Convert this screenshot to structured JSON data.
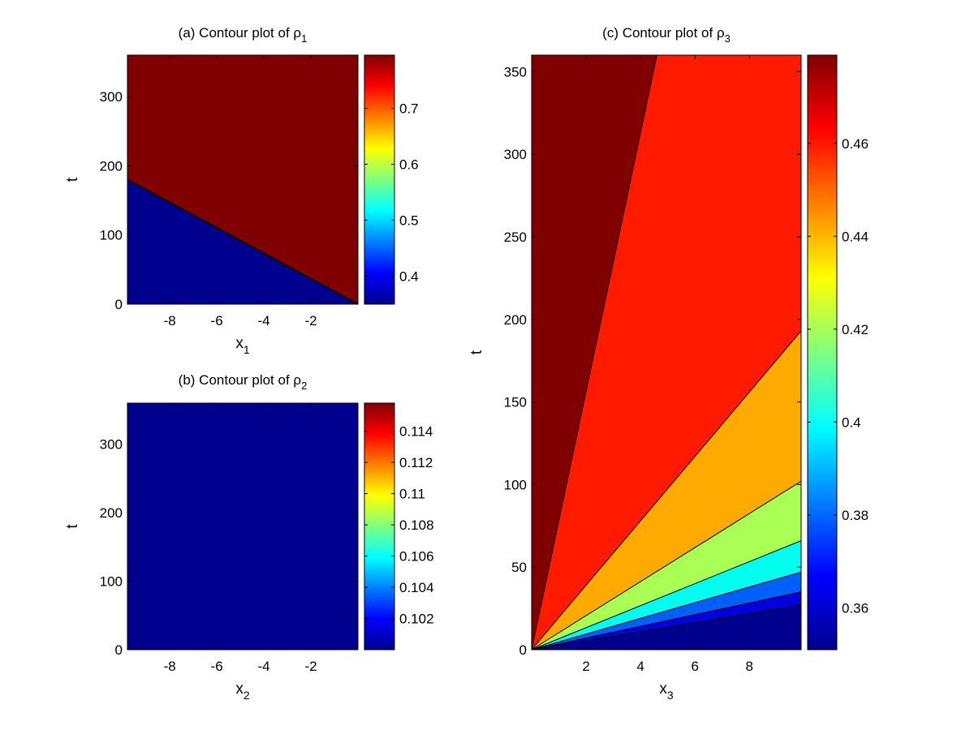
{
  "chart_data": [
    {
      "type": "contour",
      "title_prefix": "(a) Contour plot of ",
      "title_symbol": "ρ",
      "title_sub": "1",
      "xlabel": "x",
      "xlabel_sub": "1",
      "ylabel": "t",
      "xlim": [
        -9.8,
        0
      ],
      "ylim": [
        0,
        360
      ],
      "xticks": [
        -8,
        -6,
        -4,
        -2
      ],
      "yticks": [
        0,
        100,
        200,
        300
      ],
      "regions": [
        {
          "polygon": [
            [
              -9.8,
              0
            ],
            [
              0,
              0
            ],
            [
              -9.8,
              180
            ]
          ],
          "value": 0.35,
          "color": "#00008f"
        },
        {
          "polygon": [
            [
              -9.8,
              180
            ],
            [
              0,
              0
            ],
            [
              0,
              360
            ],
            [
              -9.8,
              360
            ]
          ],
          "value": 0.79,
          "color": "#800000"
        }
      ],
      "contour_lines": [
        [
          [
            -9.8,
            180
          ],
          [
            0,
            0
          ]
        ]
      ],
      "colorbar": {
        "min": 0.35,
        "max": 0.795,
        "ticks": [
          0.4,
          0.5,
          0.6,
          0.7
        ],
        "tick_labels": [
          "0.4",
          "0.5",
          "0.6",
          "0.7"
        ]
      }
    },
    {
      "type": "contour",
      "title_prefix": "(b) Contour plot of ",
      "title_symbol": "ρ",
      "title_sub": "2",
      "xlabel": "x",
      "xlabel_sub": "2",
      "ylabel": "t",
      "xlim": [
        -9.8,
        0
      ],
      "ylim": [
        0,
        360
      ],
      "xticks": [
        -8,
        -6,
        -4,
        -2
      ],
      "yticks": [
        0,
        100,
        200,
        300
      ],
      "regions": [
        {
          "polygon": [
            [
              -9.8,
              0
            ],
            [
              0,
              0
            ],
            [
              0,
              360
            ],
            [
              -9.8,
              360
            ]
          ],
          "value": 0.1,
          "color": "#00008f"
        }
      ],
      "contour_lines": [],
      "colorbar": {
        "min": 0.1,
        "max": 0.1158,
        "ticks": [
          0.102,
          0.104,
          0.106,
          0.108,
          0.11,
          0.112,
          0.114
        ],
        "tick_labels": [
          "0.102",
          "0.104",
          "0.106",
          "0.108",
          "0.11",
          "0.112",
          "0.114"
        ]
      }
    },
    {
      "type": "contour",
      "title_prefix": "(c) Contour plot of ",
      "title_symbol": "ρ",
      "title_sub": "3",
      "xlabel": "x",
      "xlabel_sub": "3",
      "ylabel": "t",
      "xlim": [
        0,
        9.9
      ],
      "ylim": [
        0,
        360
      ],
      "xticks": [
        2,
        4,
        6,
        8
      ],
      "yticks": [
        0,
        50,
        100,
        150,
        200,
        250,
        300,
        350
      ],
      "regions": [
        {
          "polygon": [
            [
              0,
              0
            ],
            [
              4.6,
              360
            ],
            [
              0,
              360
            ]
          ],
          "value": 0.478,
          "color": "#800000"
        },
        {
          "polygon": [
            [
              0,
              0
            ],
            [
              9.9,
              193
            ],
            [
              9.9,
              360
            ],
            [
              4.6,
              360
            ]
          ],
          "value": 0.465,
          "color": "#ff1a00"
        },
        {
          "polygon": [
            [
              0,
              0
            ],
            [
              9.9,
              102
            ],
            [
              9.9,
              193
            ]
          ],
          "value": 0.445,
          "color": "#ffaa00"
        },
        {
          "polygon": [
            [
              0,
              0
            ],
            [
              9.9,
              66
            ],
            [
              9.9,
              102
            ]
          ],
          "value": 0.425,
          "color": "#aaff55"
        },
        {
          "polygon": [
            [
              0,
              0
            ],
            [
              9.9,
              47
            ],
            [
              9.9,
              66
            ]
          ],
          "value": 0.405,
          "color": "#00ffee"
        },
        {
          "polygon": [
            [
              0,
              0
            ],
            [
              9.9,
              35
            ],
            [
              9.9,
              47
            ]
          ],
          "value": 0.378,
          "color": "#0060ff"
        },
        {
          "polygon": [
            [
              0,
              0
            ],
            [
              9.9,
              27
            ],
            [
              9.9,
              35
            ]
          ],
          "value": 0.36,
          "color": "#0000dd"
        },
        {
          "polygon": [
            [
              0,
              0
            ],
            [
              9.9,
              0
            ],
            [
              9.9,
              27
            ]
          ],
          "value": 0.352,
          "color": "#00008f"
        }
      ],
      "contour_lines": [
        [
          [
            0,
            0
          ],
          [
            4.6,
            360
          ]
        ],
        [
          [
            0,
            0
          ],
          [
            9.9,
            193
          ]
        ],
        [
          [
            0,
            0
          ],
          [
            9.9,
            102
          ]
        ],
        [
          [
            0,
            0
          ],
          [
            9.9,
            66
          ]
        ],
        [
          [
            0,
            0
          ],
          [
            9.9,
            47
          ]
        ],
        [
          [
            0,
            0
          ],
          [
            9.9,
            35
          ]
        ],
        [
          [
            0,
            0
          ],
          [
            9.9,
            27
          ]
        ]
      ],
      "colorbar": {
        "min": 0.351,
        "max": 0.479,
        "ticks": [
          0.36,
          0.38,
          0.4,
          0.42,
          0.44,
          0.46
        ],
        "tick_labels": [
          "0.36",
          "0.38",
          "0.4",
          "0.42",
          "0.44",
          "0.46"
        ]
      }
    }
  ]
}
